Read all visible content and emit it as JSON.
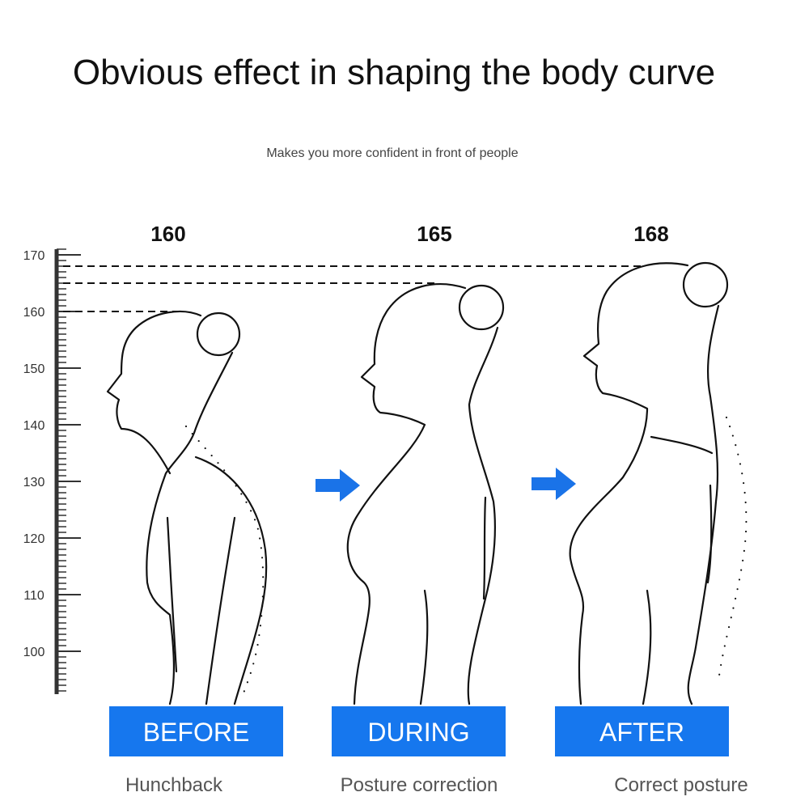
{
  "header": {
    "title": "Obvious effect in shaping the body curve",
    "subtitle": "Makes you more confident in front of people"
  },
  "ruler": {
    "ticks": [
      170,
      160,
      150,
      140,
      130,
      120,
      110,
      100
    ]
  },
  "figures": [
    {
      "height": 160,
      "label": "BEFORE",
      "caption": "Hunchback"
    },
    {
      "height": 165,
      "label": "DURING",
      "caption": "Posture correction"
    },
    {
      "height": 168,
      "label": "AFTER",
      "caption": "Correct posture"
    }
  ]
}
